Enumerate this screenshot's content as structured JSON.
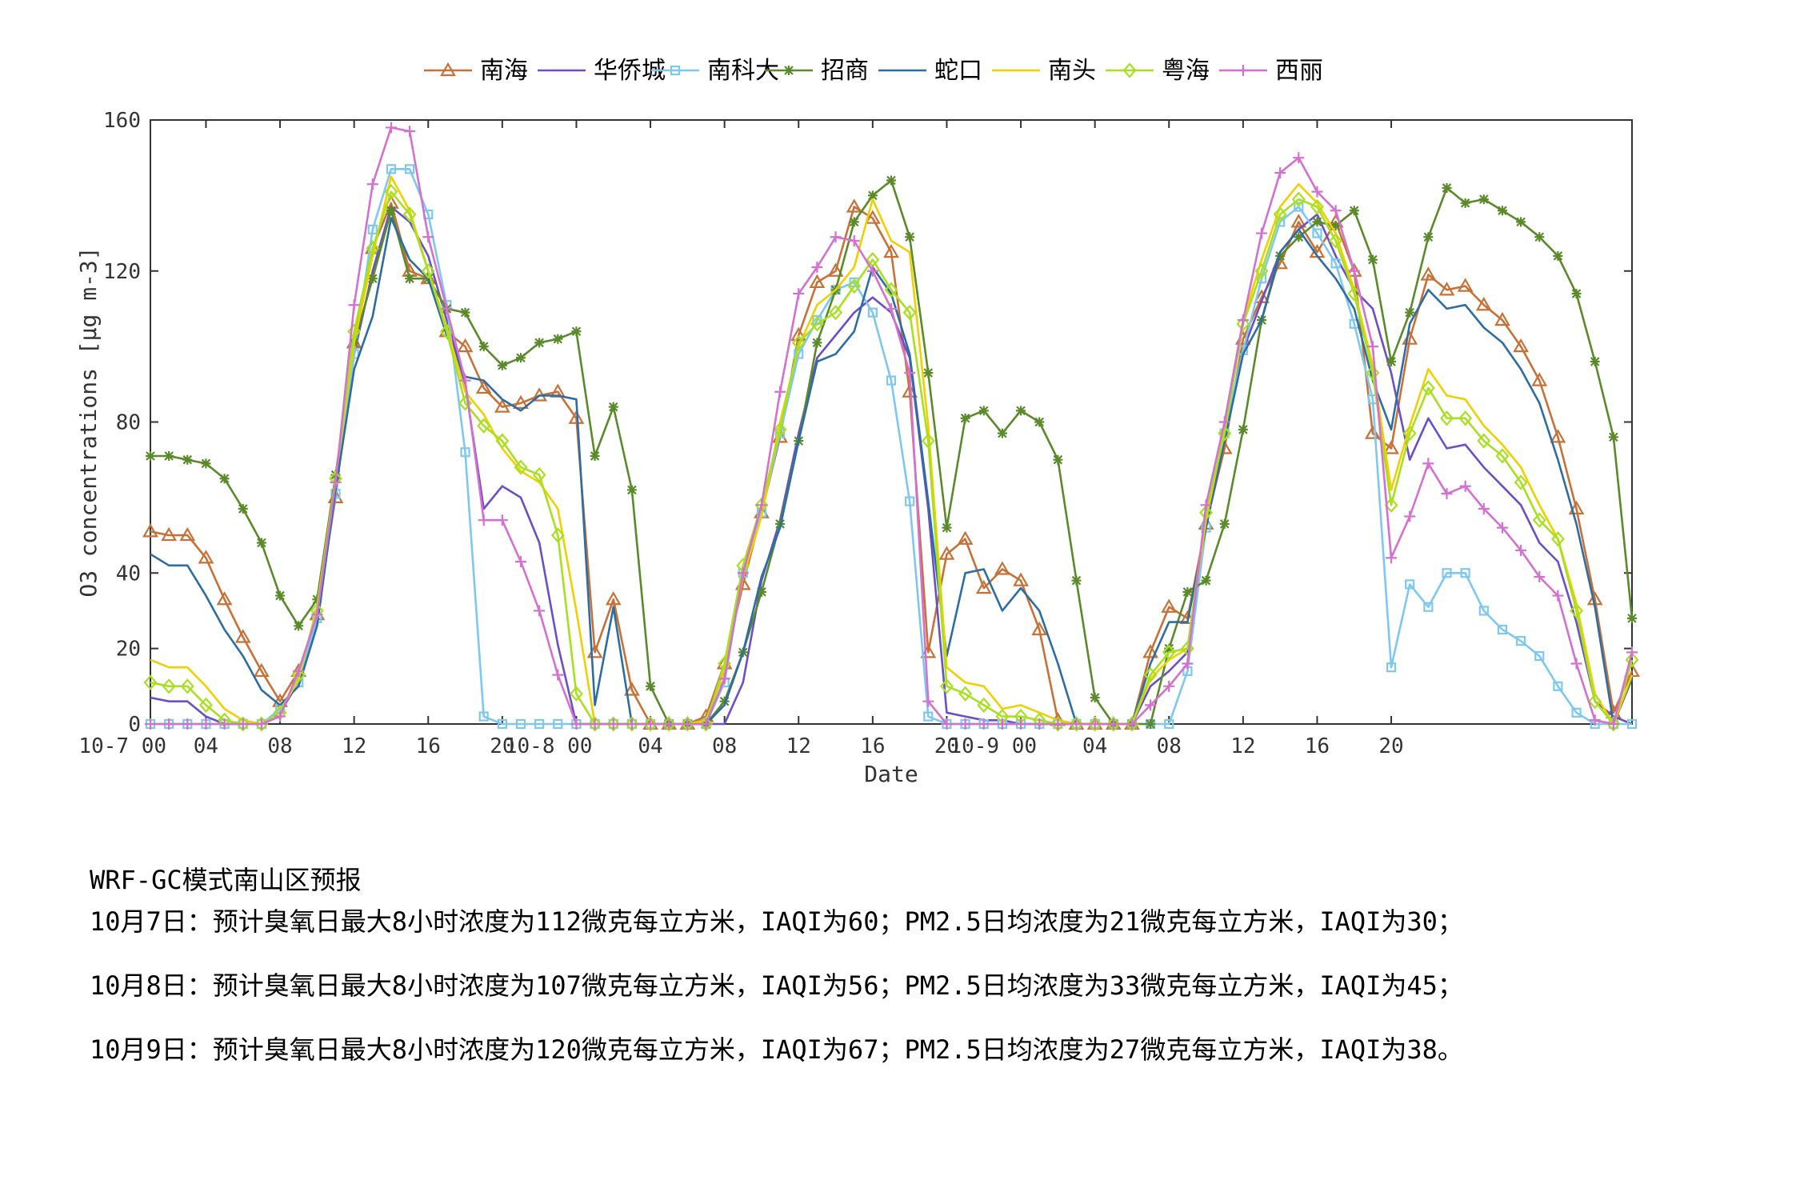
{
  "chart_data": {
    "type": "line",
    "xlabel": "Date",
    "ylabel": "O3 concentrations [μg m-3]",
    "ylim": [
      0,
      160
    ],
    "yticks": [
      0,
      20,
      40,
      80,
      120,
      160
    ],
    "grid": false,
    "legend_position": "top-center",
    "x_hours_from_start": [
      0,
      1,
      2,
      3,
      4,
      5,
      6,
      7,
      8,
      9,
      10,
      11,
      12,
      13,
      14,
      15,
      16,
      17,
      18,
      19,
      20,
      21,
      22,
      23,
      24,
      25,
      26,
      27,
      28,
      29,
      30,
      31,
      32,
      33,
      34,
      35,
      36,
      37,
      38,
      39,
      40,
      41,
      42,
      43,
      44,
      45,
      46,
      47,
      48,
      49,
      50,
      51,
      52,
      53,
      54,
      55,
      56,
      57,
      58,
      59,
      60,
      61,
      62,
      63,
      64,
      65,
      66,
      67,
      68,
      69,
      70,
      71,
      72,
      73,
      74,
      75,
      76,
      77,
      78,
      79,
      80
    ],
    "x_ticks": [
      {
        "label": "10-7 00",
        "x": 0
      },
      {
        "label": "04",
        "x": 3
      },
      {
        "label": "08",
        "x": 7
      },
      {
        "label": "12",
        "x": 11
      },
      {
        "label": "16",
        "x": 15
      },
      {
        "label": "20",
        "x": 19
      },
      {
        "label": "10-8 00",
        "x": 23
      },
      {
        "label": "04",
        "x": 27
      },
      {
        "label": "08",
        "x": 31
      },
      {
        "label": "12",
        "x": 35
      },
      {
        "label": "16",
        "x": 39
      },
      {
        "label": "20",
        "x": 43
      },
      {
        "label": "10-9 00",
        "x": 47
      },
      {
        "label": "04",
        "x": 51
      },
      {
        "label": "08",
        "x": 55
      },
      {
        "label": "12",
        "x": 59
      },
      {
        "label": "16",
        "x": 63
      },
      {
        "label": "20",
        "x": 67
      }
    ],
    "series": [
      {
        "name": "南海",
        "color": "#c87137",
        "marker": "triangle",
        "values": [
          51,
          50,
          50,
          44,
          33,
          23,
          14,
          6,
          14,
          29,
          60,
          101,
          126,
          138,
          120,
          118,
          104,
          100,
          89,
          84,
          85,
          87,
          88,
          81,
          19,
          33,
          9,
          0,
          0,
          0,
          2,
          16,
          37,
          56,
          76,
          103,
          117,
          120,
          137,
          134,
          125,
          88,
          19,
          45,
          49,
          36,
          41,
          38,
          25,
          1,
          0,
          0,
          0,
          0,
          19,
          31,
          28,
          53,
          73,
          102,
          113,
          122,
          133,
          125,
          133,
          120,
          77,
          73,
          102,
          119,
          115,
          116,
          111,
          107,
          100,
          91,
          76,
          57,
          33,
          3,
          14
        ]
      },
      {
        "name": "华侨城",
        "color": "#6a4fc8",
        "marker": "none",
        "values": [
          7,
          6,
          6,
          2,
          0,
          0,
          0,
          3,
          11,
          28,
          62,
          98,
          120,
          137,
          133,
          124,
          107,
          90,
          57,
          63,
          60,
          48,
          21,
          0,
          0,
          0,
          0,
          0,
          0,
          0,
          0,
          0,
          11,
          38,
          54,
          77,
          97,
          103,
          109,
          113,
          109,
          97,
          57,
          3,
          2,
          1,
          1,
          0,
          0,
          0,
          0,
          0,
          0,
          0,
          10,
          14,
          19,
          52,
          77,
          99,
          112,
          125,
          131,
          135,
          124,
          115,
          110,
          93,
          70,
          81,
          73,
          74,
          68,
          63,
          58,
          48,
          43,
          27,
          6,
          2,
          0
        ]
      },
      {
        "name": "南科大",
        "color": "#7ec8f0",
        "marker": "square",
        "values": [
          0,
          0,
          0,
          0,
          0,
          0,
          0,
          4,
          11,
          28,
          61,
          98,
          131,
          147,
          147,
          135,
          111,
          72,
          2,
          0,
          0,
          0,
          0,
          0,
          0,
          0,
          0,
          0,
          0,
          0,
          0,
          11,
          40,
          56,
          77,
          98,
          107,
          115,
          117,
          109,
          91,
          59,
          2,
          0,
          0,
          0,
          0,
          0,
          0,
          0,
          0,
          0,
          0,
          0,
          0,
          0,
          14,
          52,
          77,
          99,
          118,
          133,
          137,
          130,
          122,
          106,
          86,
          15,
          37,
          31,
          40,
          40,
          30,
          25,
          22,
          18,
          10,
          3,
          0,
          0,
          0
        ]
      },
      {
        "name": "招商",
        "color": "#5a8a2a",
        "marker": "star",
        "values": [
          71,
          71,
          70,
          69,
          65,
          57,
          48,
          34,
          26,
          33,
          66,
          101,
          118,
          136,
          118,
          118,
          110,
          109,
          100,
          95,
          97,
          101,
          102,
          104,
          71,
          84,
          62,
          10,
          0,
          0,
          0,
          6,
          19,
          35,
          53,
          75,
          101,
          115,
          133,
          140,
          144,
          129,
          93,
          52,
          81,
          83,
          77,
          83,
          80,
          70,
          38,
          7,
          0,
          0,
          0,
          20,
          35,
          38,
          53,
          78,
          107,
          124,
          129,
          133,
          132,
          136,
          123,
          96,
          109,
          129,
          142,
          138,
          139,
          136,
          133,
          129,
          124,
          114,
          96,
          76,
          28
        ]
      },
      {
        "name": "蛇口",
        "color": "#2e6da4",
        "marker": "none",
        "values": [
          45,
          42,
          42,
          34,
          25,
          18,
          9,
          5,
          10,
          26,
          62,
          94,
          108,
          134,
          123,
          118,
          103,
          92,
          91,
          86,
          83,
          87,
          87,
          86,
          5,
          31,
          0,
          0,
          0,
          0,
          0,
          5,
          19,
          39,
          52,
          75,
          96,
          98,
          104,
          121,
          114,
          98,
          59,
          18,
          40,
          41,
          30,
          36,
          30,
          16,
          0,
          0,
          0,
          0,
          16,
          27,
          27,
          52,
          75,
          98,
          107,
          125,
          131,
          124,
          118,
          110,
          91,
          78,
          106,
          115,
          110,
          111,
          105,
          101,
          94,
          85,
          70,
          53,
          31,
          0,
          12
        ]
      },
      {
        "name": "南头",
        "color": "#f0d000",
        "marker": "none",
        "values": [
          17,
          15,
          15,
          10,
          4,
          1,
          0,
          3,
          12,
          31,
          65,
          101,
          124,
          145,
          136,
          120,
          105,
          88,
          82,
          73,
          67,
          64,
          57,
          30,
          0,
          0,
          0,
          0,
          0,
          0,
          1,
          14,
          39,
          55,
          80,
          100,
          111,
          115,
          121,
          139,
          128,
          125,
          79,
          15,
          11,
          10,
          4,
          5,
          3,
          1,
          0,
          0,
          0,
          0,
          12,
          17,
          20,
          54,
          78,
          107,
          123,
          137,
          143,
          138,
          130,
          115,
          95,
          62,
          79,
          94,
          87,
          86,
          79,
          74,
          68,
          58,
          49,
          32,
          8,
          0,
          13
        ]
      },
      {
        "name": "粤海",
        "color": "#a8e020",
        "marker": "diamond",
        "values": [
          11,
          10,
          10,
          5,
          1,
          0,
          0,
          3,
          13,
          30,
          65,
          104,
          126,
          141,
          135,
          120,
          104,
          85,
          79,
          75,
          68,
          66,
          50,
          8,
          0,
          0,
          0,
          0,
          0,
          0,
          0,
          16,
          42,
          58,
          78,
          101,
          106,
          109,
          116,
          123,
          115,
          109,
          75,
          10,
          8,
          5,
          2,
          2,
          1,
          0,
          0,
          0,
          0,
          0,
          13,
          19,
          20,
          56,
          77,
          106,
          120,
          135,
          139,
          137,
          128,
          114,
          93,
          58,
          77,
          89,
          81,
          81,
          75,
          71,
          64,
          54,
          49,
          30,
          6,
          0,
          17
        ]
      },
      {
        "name": "西丽",
        "color": "#d470d0",
        "marker": "plus",
        "values": [
          0,
          0,
          0,
          0,
          0,
          0,
          0,
          2,
          14,
          29,
          64,
          111,
          143,
          158,
          157,
          129,
          110,
          91,
          54,
          54,
          43,
          30,
          13,
          0,
          0,
          0,
          0,
          0,
          0,
          0,
          0,
          12,
          40,
          58,
          88,
          114,
          121,
          129,
          128,
          120,
          110,
          93,
          6,
          0,
          0,
          0,
          0,
          0,
          0,
          0,
          0,
          0,
          0,
          0,
          5,
          10,
          16,
          58,
          80,
          107,
          130,
          146,
          150,
          141,
          136,
          120,
          100,
          44,
          55,
          69,
          61,
          63,
          57,
          52,
          46,
          39,
          34,
          16,
          1,
          0,
          19
        ]
      }
    ]
  },
  "forecast": {
    "title": "WRF-GC模式南山区预报",
    "lines": [
      "10月7日：预计臭氧日最大8小时浓度为112微克每立方米，IAQI为60；PM2.5日均浓度为21微克每立方米，IAQI为30；",
      "10月8日：预计臭氧日最大8小时浓度为107微克每立方米，IAQI为56；PM2.5日均浓度为33微克每立方米，IAQI为45；",
      "10月9日：预计臭氧日最大8小时浓度为120微克每立方米，IAQI为67；PM2.5日均浓度为27微克每立方米，IAQI为38。"
    ]
  }
}
